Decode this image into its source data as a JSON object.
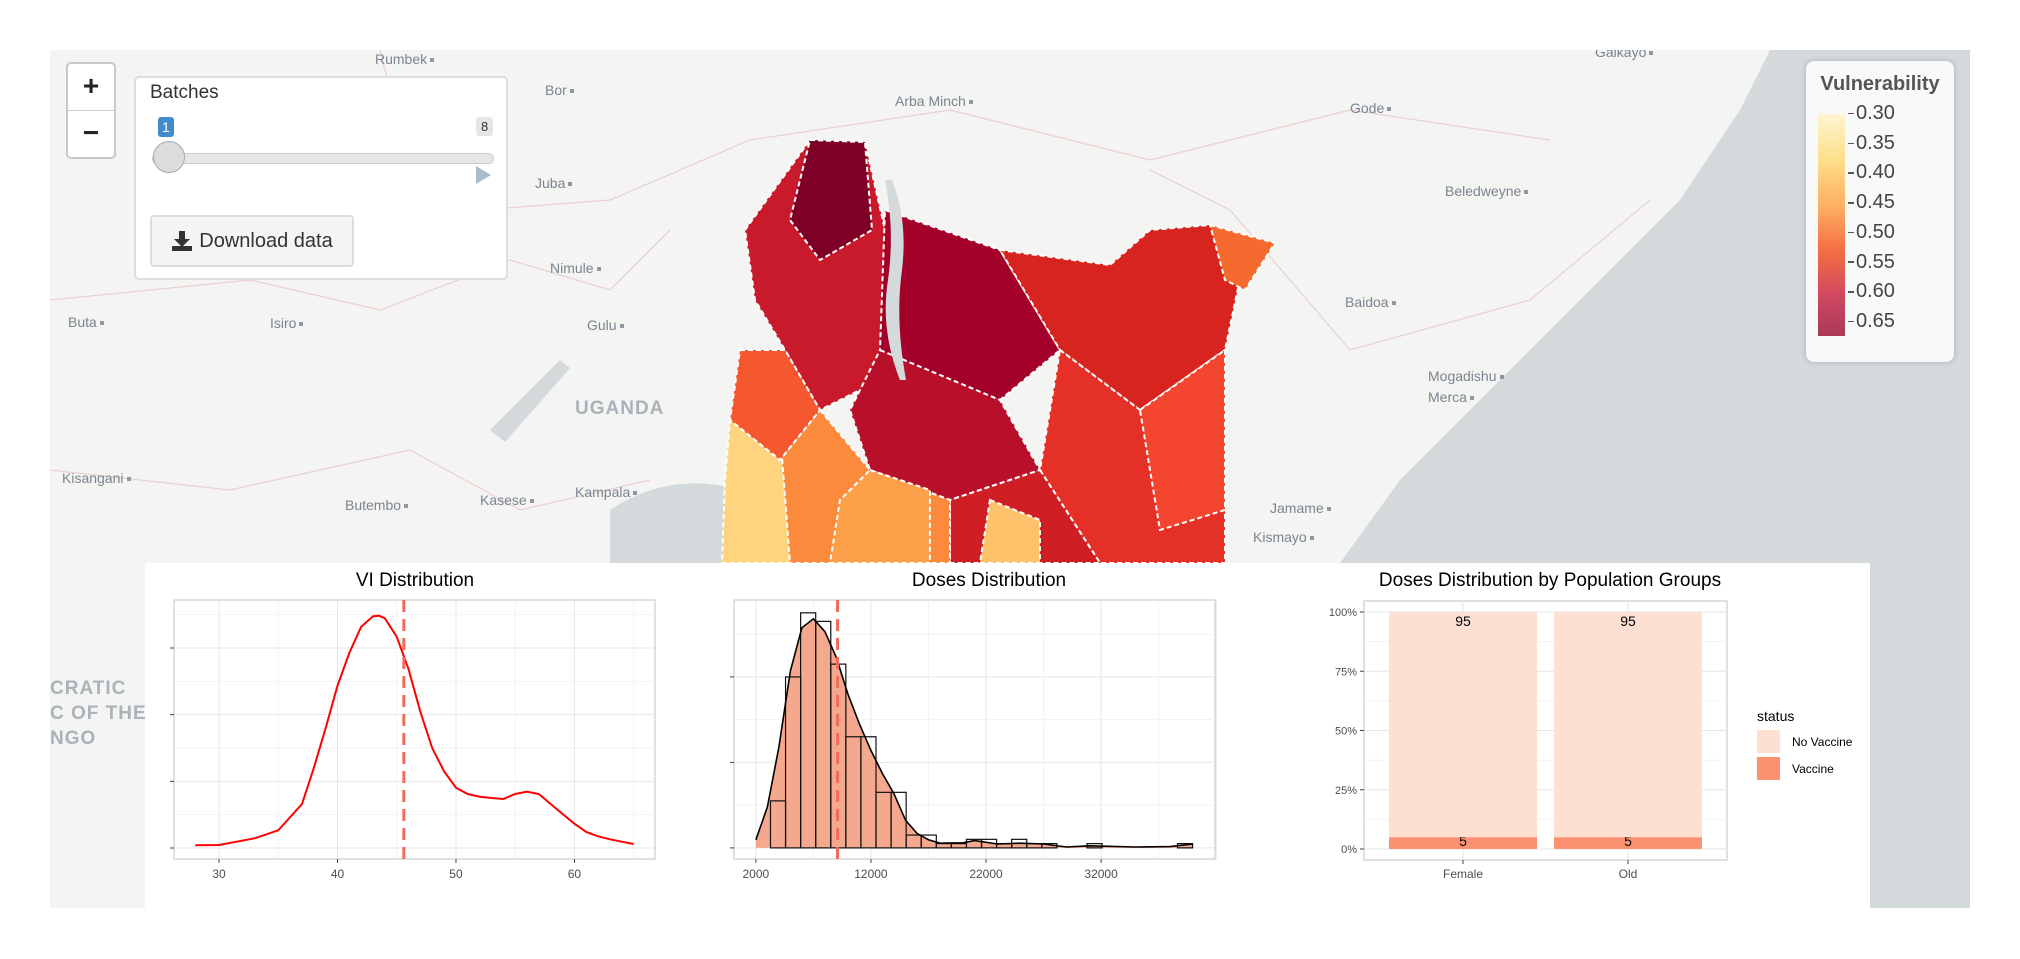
{
  "map": {
    "cities": [
      {
        "name": "Rumbek"
      },
      {
        "name": "Bor"
      },
      {
        "name": "Arba Minch"
      },
      {
        "name": "Galkayo"
      },
      {
        "name": "Gode"
      },
      {
        "name": "Juba"
      },
      {
        "name": "Beledweyne"
      },
      {
        "name": "Nimule"
      },
      {
        "name": "Buta"
      },
      {
        "name": "Isiro"
      },
      {
        "name": "Gulu"
      },
      {
        "name": "Baidoa"
      },
      {
        "name": "Mogadishu"
      },
      {
        "name": "Merca"
      },
      {
        "name": "Kisangani"
      },
      {
        "name": "Butembo"
      },
      {
        "name": "Kasese"
      },
      {
        "name": "Kampala"
      },
      {
        "name": "Jamame"
      },
      {
        "name": "Kismayo"
      }
    ],
    "countries": {
      "uganda": "UGANDA",
      "drc_line1": "CRATIC",
      "drc_line2": "C OF THE",
      "drc_line3": "NGO"
    },
    "zoom_in": "+",
    "zoom_out": "−",
    "colors": {
      "dark": "#7f0027",
      "red": "#c4001f",
      "mid": "#e53027",
      "orange": "#fb8a3c",
      "yellow": "#fed47e",
      "ocean": "#d4dadc"
    }
  },
  "controls": {
    "batches_label": "Batches",
    "slider": {
      "min": 1,
      "max": 8,
      "value": 1,
      "min_label": "1",
      "max_label": "8"
    },
    "download_label": "Download data",
    "download_icon": "download-icon",
    "play_icon": "play-icon"
  },
  "legend": {
    "title": "Vulnerability",
    "ticks": [
      "0.30",
      "0.35",
      "0.40",
      "0.45",
      "0.50",
      "0.55",
      "0.60",
      "0.65"
    ]
  },
  "chart_data": [
    {
      "type": "line",
      "title": "VI Distribution",
      "xlabel": "",
      "ylabel": "",
      "xlim": [
        26.2,
        66.8
      ],
      "xticks": [
        "30",
        "40",
        "50",
        "60"
      ],
      "grid": true,
      "line_color": "#ff0000",
      "mean_line": {
        "x": 45.6,
        "color": "#f26b5b",
        "style": "dashed"
      },
      "x": [
        28,
        30,
        33,
        35,
        37,
        38,
        39,
        40,
        41,
        42,
        43,
        43.5,
        44,
        45,
        46,
        47,
        48,
        49,
        50,
        51,
        52,
        53,
        54,
        55,
        56,
        57,
        58,
        59,
        60,
        61,
        62,
        63,
        64,
        65
      ],
      "y": [
        0.0008,
        0.0009,
        0.0029,
        0.0053,
        0.0132,
        0.024,
        0.0359,
        0.0487,
        0.0585,
        0.0664,
        0.0695,
        0.0697,
        0.0689,
        0.0634,
        0.0536,
        0.0408,
        0.0299,
        0.023,
        0.0181,
        0.0162,
        0.0154,
        0.015,
        0.0147,
        0.0162,
        0.0169,
        0.0162,
        0.0132,
        0.0102,
        0.0073,
        0.0048,
        0.0035,
        0.0026,
        0.0019,
        0.0012
      ]
    },
    {
      "type": "bar",
      "title": "Doses Distribution",
      "xlabel": "",
      "ylabel": "",
      "xlim": [
        100,
        41900
      ],
      "xticks": [
        "2000",
        "12000",
        "22000",
        "32000"
      ],
      "grid": true,
      "bin_start": 3270,
      "bin_width": 1310,
      "counts": [
        11,
        40,
        55,
        53,
        43,
        26,
        26,
        13,
        13,
        3,
        3,
        1,
        1,
        2,
        2,
        1,
        2,
        1,
        1,
        0,
        0,
        1,
        0,
        0,
        0,
        0,
        0,
        1
      ],
      "fill_color": "#f4a98f",
      "mean_line": {
        "x": 9100,
        "color": "#f26b5b",
        "style": "dashed"
      },
      "density": {
        "x": [
          2000,
          3000,
          4000,
          5000,
          6000,
          7000,
          8000,
          9000,
          10000,
          11000,
          12000,
          13000,
          14000,
          15000,
          16000,
          17000,
          18000,
          20000,
          21000,
          23000,
          25000,
          27000,
          29000,
          31000,
          35000,
          38000,
          40000
        ],
        "y": [
          1.9,
          9.6,
          23.6,
          41.4,
          51.5,
          53.6,
          50.6,
          44.5,
          36,
          29,
          22.8,
          17.4,
          12.7,
          6.5,
          3.4,
          1.9,
          1.1,
          1.2,
          1.7,
          0.9,
          1.1,
          0.9,
          0.2,
          0.5,
          0.2,
          0.3,
          0.9
        ]
      }
    },
    {
      "type": "bar",
      "stacked": true,
      "title": "Doses Distribution by Population Groups",
      "categories": [
        "Female",
        "Old"
      ],
      "yticks": [
        "0%",
        "25%",
        "50%",
        "75%",
        "100%"
      ],
      "ylim": [
        0,
        100
      ],
      "legend_title": "status",
      "legend_position": "right",
      "series": [
        {
          "name": "Vaccine",
          "values": [
            5,
            5
          ],
          "labels": [
            "5",
            "5"
          ],
          "color": "#fc9272"
        },
        {
          "name": "No Vaccine",
          "values": [
            95,
            95
          ],
          "labels": [
            "95",
            "95"
          ],
          "color": "#fee0d2"
        }
      ]
    }
  ]
}
